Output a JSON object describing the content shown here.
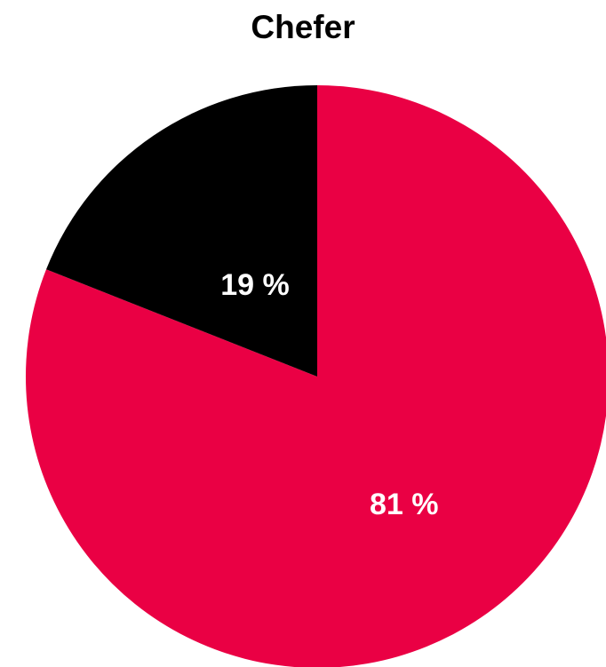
{
  "chart_data": {
    "type": "pie",
    "title": "Chefer",
    "slices": [
      {
        "value": 81,
        "label": "81 %",
        "color": "#ea0044"
      },
      {
        "value": 19,
        "label": "19 %",
        "color": "#000000"
      }
    ],
    "start_angle_deg": 0,
    "direction": "clockwise"
  }
}
